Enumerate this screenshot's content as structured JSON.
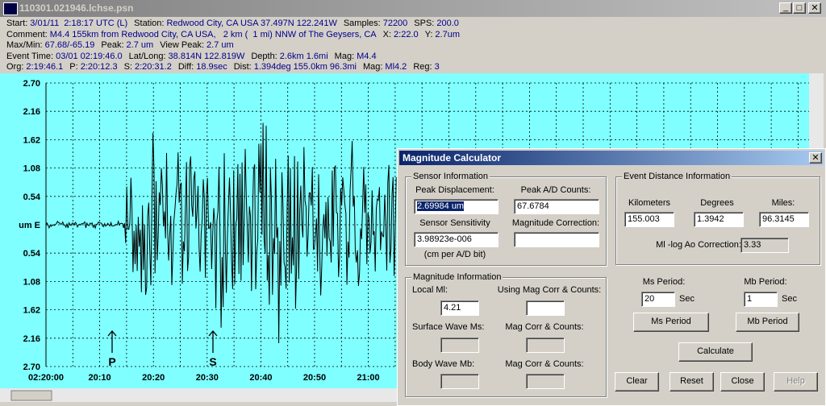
{
  "window": {
    "title": "110301.021946.lchse.psn"
  },
  "header": [
    [
      [
        "Start:",
        "3/01/11  2:18:17 UTC (L)"
      ],
      [
        "Station:",
        "Redwood City, CA USA 37.497N 122.241W"
      ],
      [
        "Samples:",
        "72200"
      ],
      [
        "SPS:",
        "200.0"
      ]
    ],
    [
      [
        "Comment:",
        "M4.4 155km from Redwood City, CA USA,   2 km (  1 mi) NNW of The Geysers, CA"
      ],
      [
        "X:",
        "2:22.0"
      ],
      [
        "Y:",
        "2.7um"
      ]
    ],
    [
      [
        "Max/Min:",
        "67.68/-65.19"
      ],
      [
        "Peak:",
        "2.7 um"
      ],
      [
        "View Peak:",
        "2.7 um"
      ]
    ],
    [
      [
        "Event Time:",
        "03/01 02:19:46.0"
      ],
      [
        "Lat/Long:",
        "38.814N 122.819W"
      ],
      [
        "Depth:",
        "2.6km 1.6mi"
      ],
      [
        "Mag:",
        "M4.4"
      ]
    ],
    [
      [
        "Org:",
        "2:19:46.1"
      ],
      [
        "P:",
        "2:20:12.3"
      ],
      [
        "S:",
        "2:20:31.2"
      ],
      [
        "Diff:",
        "18.9sec"
      ],
      [
        "Dist:",
        "1.394deg 155.0km 96.3mi"
      ],
      [
        "Mag:",
        "Ml4.2"
      ],
      [
        "Reg:",
        "3"
      ]
    ]
  ],
  "plot": {
    "y_labels": [
      "2.70",
      "2.16",
      "1.62",
      "1.08",
      "0.54",
      "um  E",
      "0.54",
      "1.08",
      "1.62",
      "2.16",
      "2.70"
    ],
    "x_labels": [
      "02:20:00",
      "20:10",
      "20:20",
      "20:30",
      "20:40",
      "20:50",
      "21:00"
    ],
    "markers": [
      "P",
      "S"
    ]
  },
  "dialog": {
    "title": "Magnitude Calculator",
    "sensor": {
      "title": "Sensor Information",
      "peak_displacement_label": "Peak Displacement:",
      "peak_displacement": "2.69984 um",
      "peak_counts_label": "Peak A/D Counts:",
      "peak_counts": "67.6784",
      "sensitivity_label": "Sensor Sensitivity",
      "sensitivity": "3.98923e-006",
      "correction_label": "Magnitude Correction:",
      "sensitivity_unit": "(cm per A/D bit)"
    },
    "distance": {
      "title": "Event Distance Information",
      "km_label": "Kilometers",
      "km": "155.003",
      "deg_label": "Degrees",
      "deg": "1.3942",
      "mi_label": "Miles:",
      "mi": "96.3145",
      "corr_label": "Ml -log Ao Correction:",
      "corr": "3.33"
    },
    "magnitude": {
      "title": "Magnitude Information",
      "local_label": "Local Ml:",
      "local": "4.21",
      "using_label": "Using Mag Corr & Counts:",
      "ms_label": "Surface Wave Ms:",
      "ms_corr_label": "Mag Corr & Counts:",
      "mb_label": "Body Wave Mb:",
      "mb_corr_label": "Mag Corr & Counts:"
    },
    "periods": {
      "ms_label": "Ms Period:",
      "ms": "20",
      "ms_unit": "Sec",
      "mb_label": "Mb Period:",
      "mb": "1",
      "mb_unit": "Sec",
      "ms_button": "Ms Period",
      "mb_button": "Mb Period"
    },
    "buttons": {
      "calculate": "Calculate",
      "clear": "Clear",
      "reset": "Reset",
      "close": "Close",
      "help": "Help"
    }
  }
}
